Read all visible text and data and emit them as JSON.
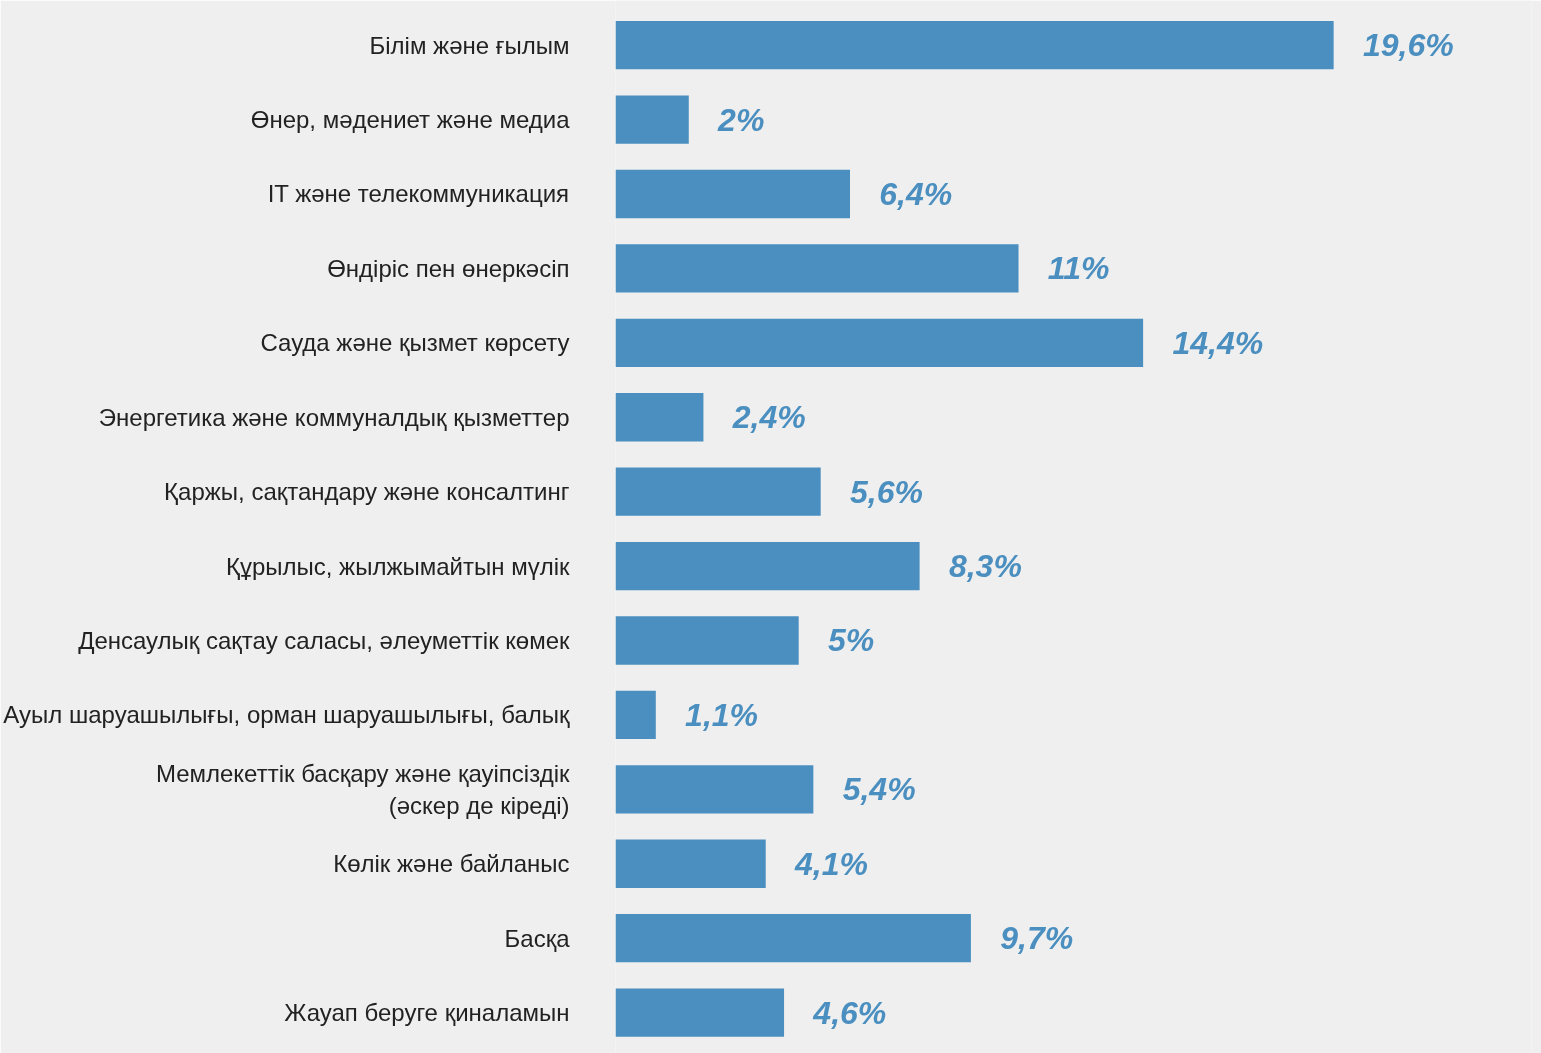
{
  "chart_data": {
    "type": "bar",
    "orientation": "horizontal",
    "tick_labels": "y",
    "grid": false,
    "categories": [
      "Білім және ғылым",
      "Өнер, мәдениет және медиа",
      "IT және телекоммуникация",
      "Өндіріс пен өнеркәсіп",
      "Сауда және қызмет көрсету",
      "Энергетика және коммуналдық қызметтер",
      "Қаржы, сақтандару және консалтинг",
      "Құрылыс, жылжымайтын мүлік",
      "Денсаулық сақтау саласы, әлеуметтік көмек",
      "Ауыл шаруашылығы, орман шаруашылығы, балық",
      "Мемлекеттік басқару және қауіпсіздік\n(әскер де кіреді)",
      "Көлік және байланыс",
      "Басқа",
      "Жауап беруге қиналамын"
    ],
    "values": [
      19.6,
      2,
      6.4,
      11,
      14.4,
      2.4,
      5.6,
      8.3,
      5,
      1.1,
      5.4,
      4.1,
      9.7,
      4.6
    ],
    "value_labels": [
      "19,6%",
      "2%",
      "6,4%",
      "11%",
      "14,4%",
      "2,4%",
      "5,6%",
      "8,3%",
      "5%",
      "1,1%",
      "5,4%",
      "4,1%",
      "9,7%",
      "4,6%"
    ],
    "color": "#4a8fc0"
  }
}
